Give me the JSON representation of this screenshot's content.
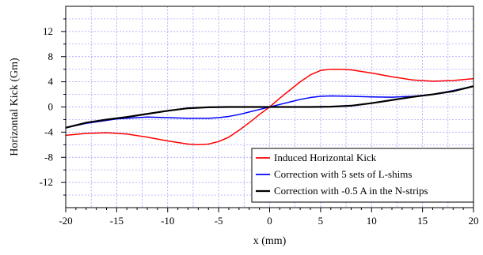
{
  "chart_data": {
    "type": "line",
    "xlabel": "x (mm)",
    "ylabel": "Horizontal Kick (Gm)",
    "xlim": [
      -20,
      20
    ],
    "ylim": [
      -16,
      16
    ],
    "x_ticks": [
      -20,
      -15,
      -10,
      -5,
      0,
      5,
      10,
      15,
      20
    ],
    "y_ticks": [
      -12,
      -8,
      -4,
      0,
      4,
      8,
      12
    ],
    "x_tick_labels": [
      "-20",
      "-15",
      "-10",
      "-5",
      "0",
      "5",
      "10",
      "15",
      "20"
    ],
    "y_tick_labels": [
      "-12",
      "-8",
      "-4",
      "0",
      "4",
      "8",
      "12"
    ],
    "grid": true,
    "grid_color": "#9999ff",
    "legend_position": "bottom-right",
    "series": [
      {
        "name": "Induced Horizontal Kick",
        "color": "#ff0000",
        "x": [
          -20,
          -18,
          -16,
          -14,
          -12,
          -10,
          -8,
          -7,
          -6,
          -5,
          -4,
          -3,
          -2,
          -1,
          0,
          1,
          2,
          3,
          4,
          5,
          6,
          7,
          8,
          10,
          12,
          14,
          16,
          18,
          20
        ],
        "y": [
          -4.5,
          -4.2,
          -4.1,
          -4.3,
          -4.8,
          -5.4,
          -5.9,
          -6.0,
          -5.9,
          -5.5,
          -4.8,
          -3.7,
          -2.5,
          -1.2,
          0,
          1.4,
          2.7,
          4.0,
          5.1,
          5.8,
          6.0,
          6.0,
          5.9,
          5.4,
          4.8,
          4.3,
          4.1,
          4.2,
          4.5
        ]
      },
      {
        "name": "Correction with 5 sets of L-shims",
        "color": "#0000ff",
        "x": [
          -20,
          -18,
          -15,
          -12,
          -10,
          -8,
          -6,
          -5,
          -4,
          -3,
          -2,
          -1,
          0,
          1,
          2,
          3,
          4,
          5,
          6,
          8,
          10,
          12,
          14,
          16,
          18,
          20
        ],
        "y": [
          -3.3,
          -2.6,
          -1.9,
          -1.6,
          -1.7,
          -1.8,
          -1.8,
          -1.7,
          -1.5,
          -1.2,
          -0.8,
          -0.4,
          0,
          0.4,
          0.8,
          1.2,
          1.5,
          1.7,
          1.75,
          1.7,
          1.6,
          1.55,
          1.7,
          2.0,
          2.6,
          3.3
        ]
      },
      {
        "name": "Correction with -0.5 A in the N-strips",
        "color": "#000000",
        "x": [
          -20,
          -18,
          -16,
          -14,
          -12,
          -10,
          -8,
          -6,
          -4,
          -2,
          0,
          2,
          4,
          6,
          8,
          10,
          12,
          14,
          16,
          18,
          20
        ],
        "y": [
          -3.3,
          -2.5,
          -2.0,
          -1.6,
          -1.1,
          -0.6,
          -0.2,
          -0.05,
          0,
          0,
          0,
          0,
          0,
          0.05,
          0.2,
          0.6,
          1.1,
          1.6,
          2.0,
          2.5,
          3.3
        ]
      }
    ]
  }
}
